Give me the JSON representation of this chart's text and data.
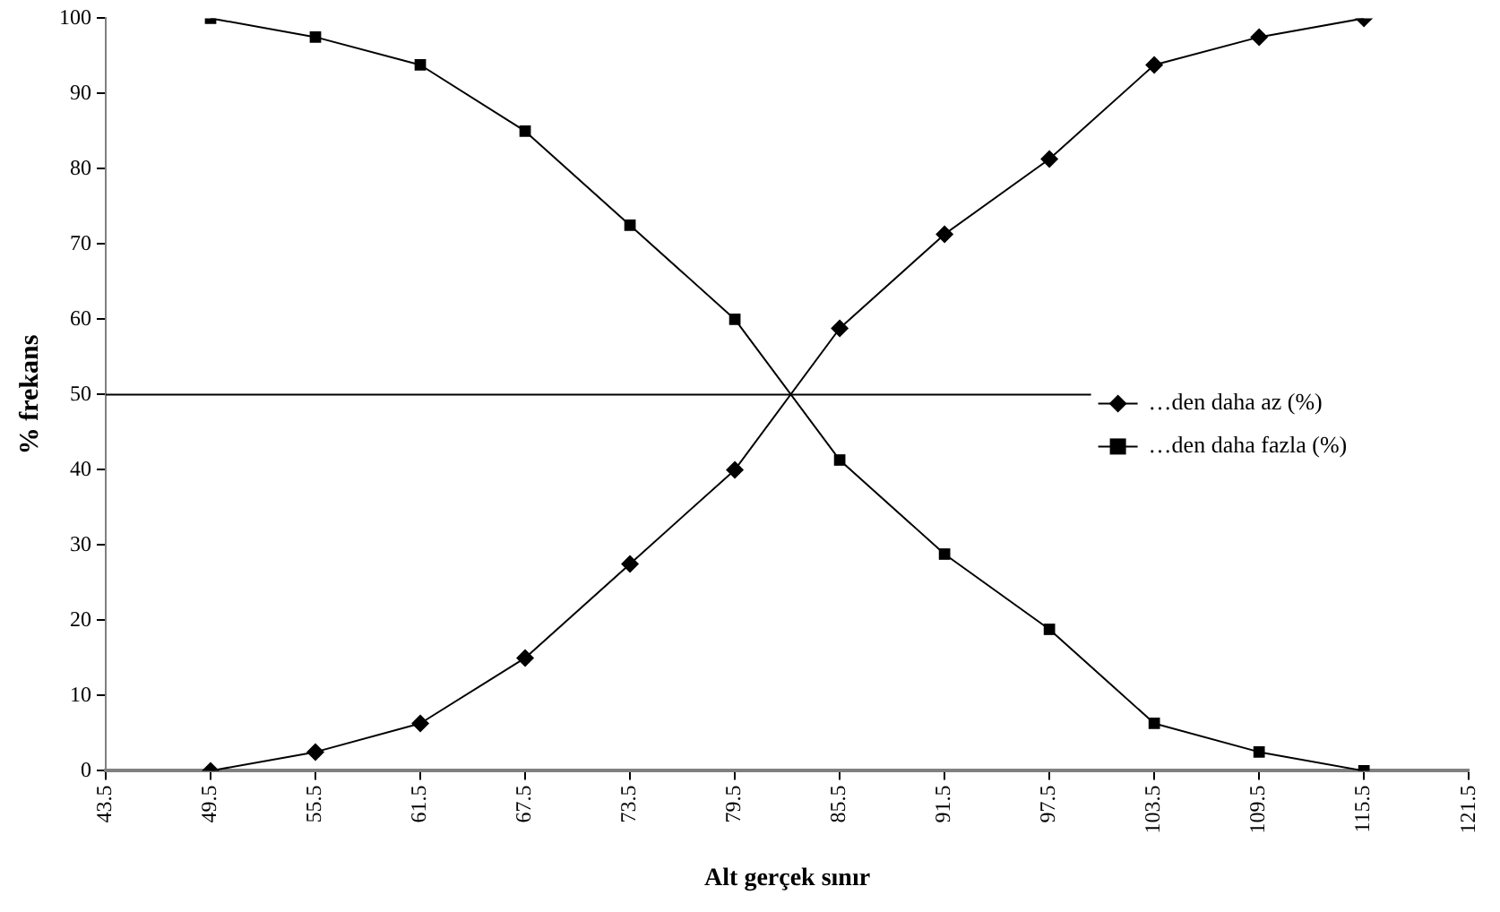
{
  "chart_data": {
    "type": "line",
    "xlabel": "Alt gerçek sınır",
    "ylabel": "% frekans",
    "x": [
      49.5,
      55.5,
      61.5,
      67.5,
      73.5,
      79.5,
      85.5,
      91.5,
      97.5,
      103.5,
      109.5,
      115.5
    ],
    "series": [
      {
        "name": "…den daha az (%)",
        "color": "#000000",
        "marker": "diamond",
        "values": [
          0,
          2.5,
          6.3,
          15,
          27.5,
          40,
          58.8,
          71.3,
          81.3,
          93.8,
          97.5,
          100
        ]
      },
      {
        "name": "…den daha fazla (%)",
        "color": "#000000",
        "marker": "square",
        "values": [
          100,
          97.5,
          93.8,
          85,
          72.5,
          60,
          41.3,
          28.8,
          18.8,
          6.3,
          2.5,
          0
        ]
      }
    ],
    "xlim": [
      43.5,
      121.5
    ],
    "xticks": [
      43.5,
      49.5,
      55.5,
      61.5,
      67.5,
      73.5,
      79.5,
      85.5,
      91.5,
      97.5,
      103.5,
      109.5,
      115.5,
      121.5
    ],
    "ylim": [
      0,
      100
    ],
    "yticks": [
      0,
      10,
      20,
      30,
      40,
      50,
      60,
      70,
      80,
      90,
      100
    ],
    "ref_lines": [
      {
        "axis": "y",
        "value": 50,
        "color": "#000000"
      }
    ],
    "grid": false,
    "legend": "right",
    "line_style": "solid"
  }
}
